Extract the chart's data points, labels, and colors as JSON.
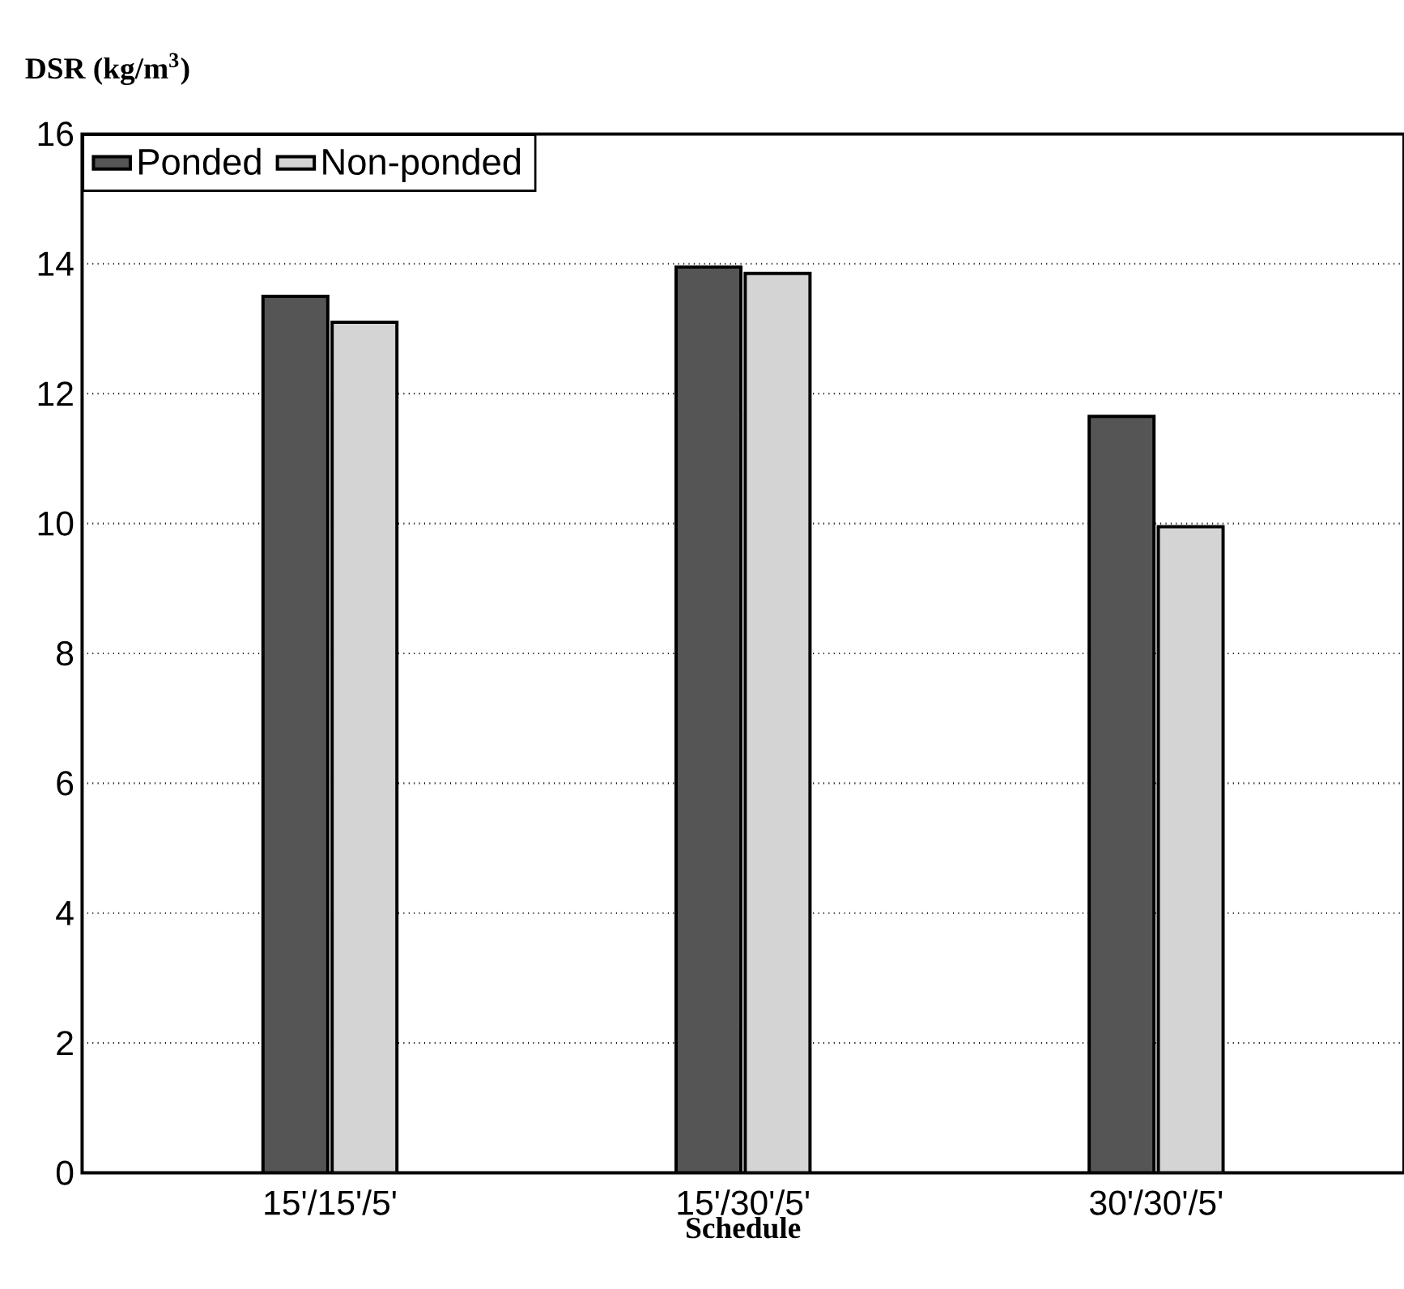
{
  "chart_data": {
    "type": "bar",
    "ylabel": "DSR (kg/m$^{3}$)",
    "xlabel": "Schedule",
    "categories": [
      "15'/15'/5'",
      "15'/30'/5'",
      "30'/30'/5'"
    ],
    "series": [
      {
        "name": "Ponded",
        "color": "#555555",
        "values": [
          13.5,
          13.95,
          11.65
        ]
      },
      {
        "name": "Non-ponded",
        "color": "#d4d4d4",
        "values": [
          13.1,
          13.85,
          9.95
        ]
      }
    ],
    "ylim": [
      0,
      16
    ],
    "yticks": [
      0,
      2,
      4,
      6,
      8,
      10,
      12,
      14,
      16
    ],
    "grid": "y",
    "legend": "top left"
  }
}
